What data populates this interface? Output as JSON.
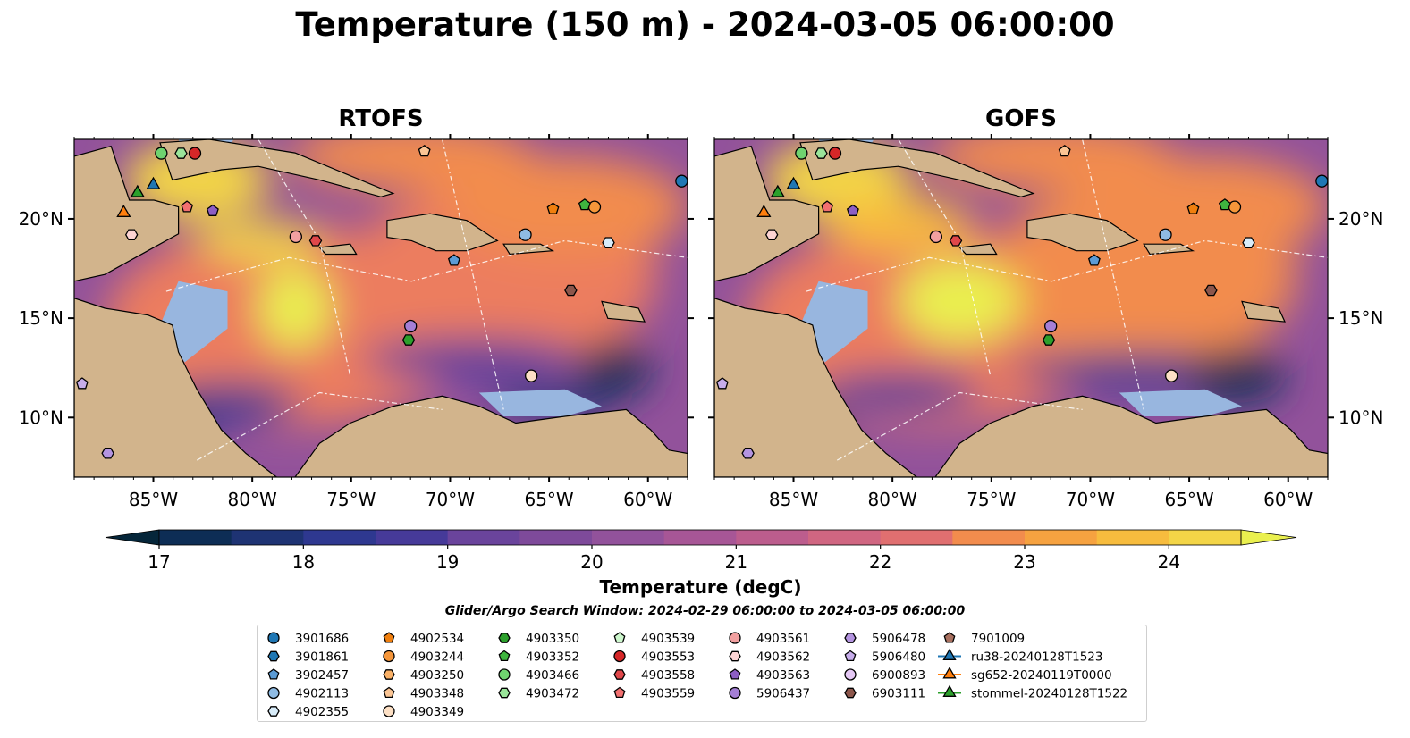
{
  "title": "Temperature (150 m) - 2024-03-05 06:00:00",
  "panels": [
    {
      "title": "RTOFS"
    },
    {
      "title": "GOFS"
    }
  ],
  "chart_data": {
    "type": "heatmap",
    "title": "Temperature (150 m) - 2024-03-05 06:00:00",
    "xlim": [
      -89,
      -58
    ],
    "ylim": [
      7,
      24
    ],
    "x_ticks": [
      "85°W",
      "80°W",
      "75°W",
      "70°W",
      "65°W",
      "60°W"
    ],
    "y_ticks": [
      "20°N",
      "15°N",
      "10°N"
    ],
    "colorbar": {
      "label": "Temperature (degC)",
      "min": 17,
      "max": 24.5,
      "step": 0.5,
      "ticks": [
        "17",
        "18",
        "19",
        "20",
        "21",
        "22",
        "23",
        "24"
      ],
      "extend": "both",
      "colors": [
        "#05263a",
        "#0d2d55",
        "#1e3373",
        "#2e3890",
        "#463a99",
        "#573c9b",
        "#6a449c",
        "#7e4a9a",
        "#92529b",
        "#a75696",
        "#bc5d8d",
        "#d06681",
        "#e06f70",
        "#ec7d5f",
        "#f28c4d",
        "#f6a240",
        "#f7bc3e",
        "#f3d547",
        "#eaf04f"
      ]
    },
    "legend_title": "Glider/Argo Search Window: 2024-02-29 06:00:00 to 2024-03-05 06:00:00",
    "markers": [
      {
        "name": "3901686",
        "color": "#1f77b4",
        "shape": "circle",
        "lon": -58.3,
        "lat": 21.9
      },
      {
        "name": "3901861",
        "color": "#1f77b4",
        "shape": "hexagon",
        "lon": null,
        "lat": null
      },
      {
        "name": "3902457",
        "color": "#5b9bd5",
        "shape": "pentagon",
        "lon": -69.8,
        "lat": 17.9
      },
      {
        "name": "4902113",
        "color": "#8fbbe3",
        "shape": "circle",
        "lon": -66.2,
        "lat": 19.2
      },
      {
        "name": "4902355",
        "color": "#d8ecf9",
        "shape": "hexagon",
        "lon": -62.0,
        "lat": 18.8
      },
      {
        "name": "4902534",
        "color": "#f07f0e",
        "shape": "pentagon",
        "lon": -64.8,
        "lat": 20.5
      },
      {
        "name": "4903244",
        "color": "#f5963a",
        "shape": "circle",
        "lon": -62.7,
        "lat": 20.6
      },
      {
        "name": "4903250",
        "color": "#f9b066",
        "shape": "hexagon",
        "lon": null,
        "lat": null
      },
      {
        "name": "4903348",
        "color": "#fbc594",
        "shape": "pentagon",
        "lon": -71.3,
        "lat": 23.4
      },
      {
        "name": "4903349",
        "color": "#fde0c5",
        "shape": "circle",
        "lon": -65.9,
        "lat": 12.1
      },
      {
        "name": "4903350",
        "color": "#2ca02c",
        "shape": "hexagon",
        "lon": -72.1,
        "lat": 13.9
      },
      {
        "name": "4903352",
        "color": "#3fb53f",
        "shape": "pentagon",
        "lon": -63.2,
        "lat": 20.7
      },
      {
        "name": "4903466",
        "color": "#6fd36f",
        "shape": "circle",
        "lon": -84.6,
        "lat": 23.3
      },
      {
        "name": "4903472",
        "color": "#9ae59a",
        "shape": "hexagon",
        "lon": -83.6,
        "lat": 23.3
      },
      {
        "name": "4903539",
        "color": "#cdf7cd",
        "shape": "pentagon",
        "lon": null,
        "lat": null
      },
      {
        "name": "4903553",
        "color": "#d62728",
        "shape": "circle",
        "lon": -82.9,
        "lat": 23.3
      },
      {
        "name": "4903558",
        "color": "#e0474a",
        "shape": "hexagon",
        "lon": -76.8,
        "lat": 18.9
      },
      {
        "name": "4903559",
        "color": "#f27070",
        "shape": "pentagon",
        "lon": -83.3,
        "lat": 20.6
      },
      {
        "name": "4903561",
        "color": "#f2a0a0",
        "shape": "circle",
        "lon": -77.8,
        "lat": 19.1
      },
      {
        "name": "4903562",
        "color": "#fcd4d4",
        "shape": "hexagon",
        "lon": -86.1,
        "lat": 19.2
      },
      {
        "name": "4903563",
        "color": "#8d5ec4",
        "shape": "pentagon",
        "lon": -82.0,
        "lat": 20.4
      },
      {
        "name": "5906437",
        "color": "#a57fd6",
        "shape": "circle",
        "lon": -72.0,
        "lat": 14.6
      },
      {
        "name": "5906478",
        "color": "#b494e0",
        "shape": "hexagon",
        "lon": -87.3,
        "lat": 8.2
      },
      {
        "name": "5906480",
        "color": "#c7adeb",
        "shape": "pentagon",
        "lon": -88.6,
        "lat": 11.7
      },
      {
        "name": "6900893",
        "color": "#e5c8f5",
        "shape": "circle",
        "lon": null,
        "lat": null
      },
      {
        "name": "6903111",
        "color": "#8c564b",
        "shape": "hexagon",
        "lon": -63.9,
        "lat": 16.4
      },
      {
        "name": "7901009",
        "color": "#a8705f",
        "shape": "pentagon",
        "lon": null,
        "lat": null
      },
      {
        "name": "ru38-20240128T1523",
        "color": "#1f77b4",
        "shape": "triangle",
        "line": true,
        "lon": -85.0,
        "lat": 21.7
      },
      {
        "name": "sg652-20240119T0000",
        "color": "#ff7f0e",
        "shape": "triangle",
        "line": true,
        "lon": -86.5,
        "lat": 20.3
      },
      {
        "name": "stommel-20240128T1522",
        "color": "#2ca02c",
        "shape": "triangle",
        "line": true,
        "lon": -85.8,
        "lat": 21.3
      }
    ]
  }
}
